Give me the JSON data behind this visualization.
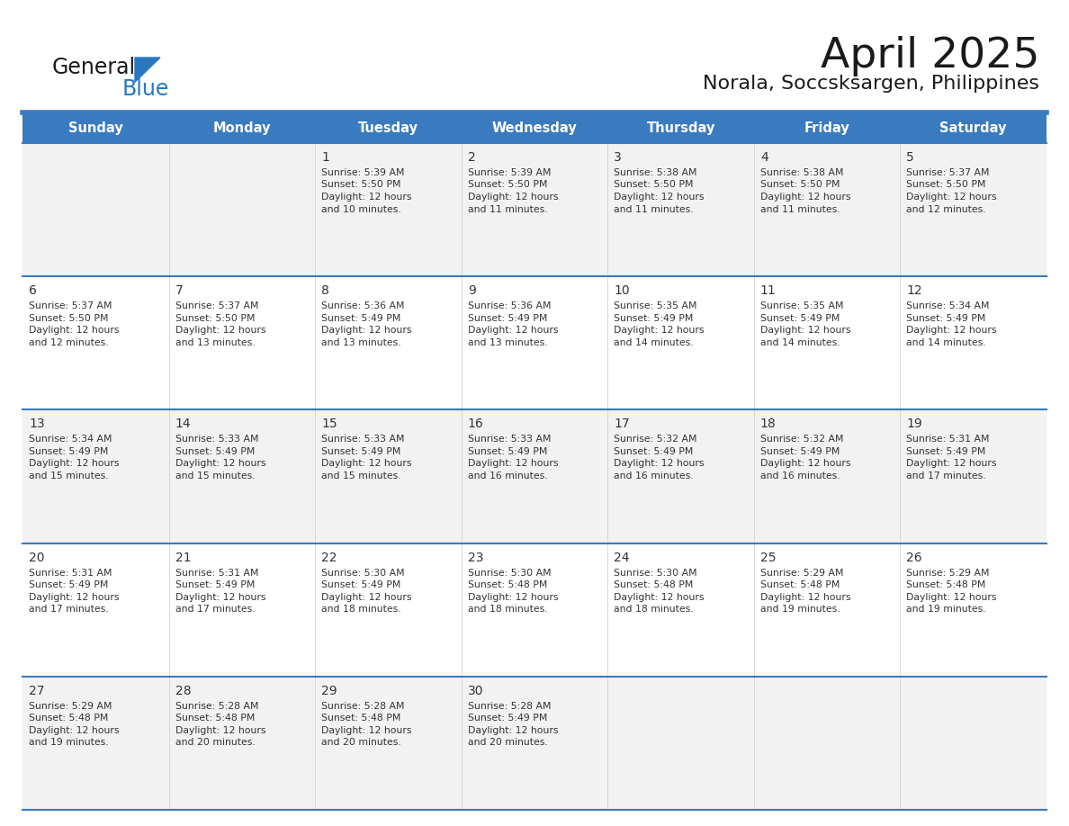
{
  "title": "April 2025",
  "subtitle": "Norala, Soccsksargen, Philippines",
  "header_bg_color": "#3a7abf",
  "header_text_color": "#ffffff",
  "header_font_size": 10.5,
  "day_names": [
    "Sunday",
    "Monday",
    "Tuesday",
    "Wednesday",
    "Thursday",
    "Friday",
    "Saturday"
  ],
  "title_font_size": 34,
  "subtitle_font_size": 16,
  "cell_text_color": "#333333",
  "day_num_font_size": 9.5,
  "info_font_size": 7.8,
  "logo_general_color": "#1a1a1a",
  "logo_blue_color": "#2878c0",
  "separator_color": "#3a7abf",
  "row_bg_even": "#f2f2f2",
  "row_bg_odd": "#ffffff",
  "calendar_data": [
    [
      {
        "day": null,
        "sunrise": null,
        "sunset": null,
        "daylight": null
      },
      {
        "day": null,
        "sunrise": null,
        "sunset": null,
        "daylight": null
      },
      {
        "day": 1,
        "sunrise": "5:39 AM",
        "sunset": "5:50 PM",
        "daylight": "12 hours\nand 10 minutes."
      },
      {
        "day": 2,
        "sunrise": "5:39 AM",
        "sunset": "5:50 PM",
        "daylight": "12 hours\nand 11 minutes."
      },
      {
        "day": 3,
        "sunrise": "5:38 AM",
        "sunset": "5:50 PM",
        "daylight": "12 hours\nand 11 minutes."
      },
      {
        "day": 4,
        "sunrise": "5:38 AM",
        "sunset": "5:50 PM",
        "daylight": "12 hours\nand 11 minutes."
      },
      {
        "day": 5,
        "sunrise": "5:37 AM",
        "sunset": "5:50 PM",
        "daylight": "12 hours\nand 12 minutes."
      }
    ],
    [
      {
        "day": 6,
        "sunrise": "5:37 AM",
        "sunset": "5:50 PM",
        "daylight": "12 hours\nand 12 minutes."
      },
      {
        "day": 7,
        "sunrise": "5:37 AM",
        "sunset": "5:50 PM",
        "daylight": "12 hours\nand 13 minutes."
      },
      {
        "day": 8,
        "sunrise": "5:36 AM",
        "sunset": "5:49 PM",
        "daylight": "12 hours\nand 13 minutes."
      },
      {
        "day": 9,
        "sunrise": "5:36 AM",
        "sunset": "5:49 PM",
        "daylight": "12 hours\nand 13 minutes."
      },
      {
        "day": 10,
        "sunrise": "5:35 AM",
        "sunset": "5:49 PM",
        "daylight": "12 hours\nand 14 minutes."
      },
      {
        "day": 11,
        "sunrise": "5:35 AM",
        "sunset": "5:49 PM",
        "daylight": "12 hours\nand 14 minutes."
      },
      {
        "day": 12,
        "sunrise": "5:34 AM",
        "sunset": "5:49 PM",
        "daylight": "12 hours\nand 14 minutes."
      }
    ],
    [
      {
        "day": 13,
        "sunrise": "5:34 AM",
        "sunset": "5:49 PM",
        "daylight": "12 hours\nand 15 minutes."
      },
      {
        "day": 14,
        "sunrise": "5:33 AM",
        "sunset": "5:49 PM",
        "daylight": "12 hours\nand 15 minutes."
      },
      {
        "day": 15,
        "sunrise": "5:33 AM",
        "sunset": "5:49 PM",
        "daylight": "12 hours\nand 15 minutes."
      },
      {
        "day": 16,
        "sunrise": "5:33 AM",
        "sunset": "5:49 PM",
        "daylight": "12 hours\nand 16 minutes."
      },
      {
        "day": 17,
        "sunrise": "5:32 AM",
        "sunset": "5:49 PM",
        "daylight": "12 hours\nand 16 minutes."
      },
      {
        "day": 18,
        "sunrise": "5:32 AM",
        "sunset": "5:49 PM",
        "daylight": "12 hours\nand 16 minutes."
      },
      {
        "day": 19,
        "sunrise": "5:31 AM",
        "sunset": "5:49 PM",
        "daylight": "12 hours\nand 17 minutes."
      }
    ],
    [
      {
        "day": 20,
        "sunrise": "5:31 AM",
        "sunset": "5:49 PM",
        "daylight": "12 hours\nand 17 minutes."
      },
      {
        "day": 21,
        "sunrise": "5:31 AM",
        "sunset": "5:49 PM",
        "daylight": "12 hours\nand 17 minutes."
      },
      {
        "day": 22,
        "sunrise": "5:30 AM",
        "sunset": "5:49 PM",
        "daylight": "12 hours\nand 18 minutes."
      },
      {
        "day": 23,
        "sunrise": "5:30 AM",
        "sunset": "5:48 PM",
        "daylight": "12 hours\nand 18 minutes."
      },
      {
        "day": 24,
        "sunrise": "5:30 AM",
        "sunset": "5:48 PM",
        "daylight": "12 hours\nand 18 minutes."
      },
      {
        "day": 25,
        "sunrise": "5:29 AM",
        "sunset": "5:48 PM",
        "daylight": "12 hours\nand 19 minutes."
      },
      {
        "day": 26,
        "sunrise": "5:29 AM",
        "sunset": "5:48 PM",
        "daylight": "12 hours\nand 19 minutes."
      }
    ],
    [
      {
        "day": 27,
        "sunrise": "5:29 AM",
        "sunset": "5:48 PM",
        "daylight": "12 hours\nand 19 minutes."
      },
      {
        "day": 28,
        "sunrise": "5:28 AM",
        "sunset": "5:48 PM",
        "daylight": "12 hours\nand 20 minutes."
      },
      {
        "day": 29,
        "sunrise": "5:28 AM",
        "sunset": "5:48 PM",
        "daylight": "12 hours\nand 20 minutes."
      },
      {
        "day": 30,
        "sunrise": "5:28 AM",
        "sunset": "5:49 PM",
        "daylight": "12 hours\nand 20 minutes."
      },
      {
        "day": null,
        "sunrise": null,
        "sunset": null,
        "daylight": null
      },
      {
        "day": null,
        "sunrise": null,
        "sunset": null,
        "daylight": null
      },
      {
        "day": null,
        "sunrise": null,
        "sunset": null,
        "daylight": null
      }
    ]
  ]
}
